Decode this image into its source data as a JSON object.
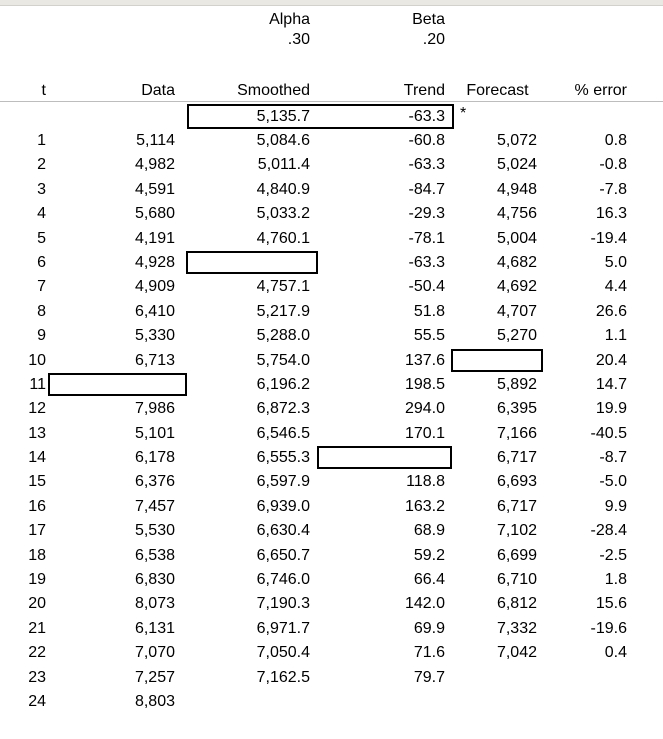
{
  "colors": {
    "background": "#ffffff",
    "text": "#000000",
    "box_border": "#000000",
    "header_rule": "#bdbdbd",
    "top_bar": "#e9e8e3"
  },
  "params": {
    "alpha": {
      "label": "Alpha",
      "value": ".30"
    },
    "beta": {
      "label": "Beta",
      "value": ".20"
    }
  },
  "table": {
    "headers": [
      "t",
      "Data",
      "Smoothed",
      "Trend",
      "Forecast",
      "% error"
    ],
    "initial_row": {
      "smoothed": "5,135.7",
      "trend": "-63.3",
      "note": "*"
    },
    "rows": [
      {
        "t": "1",
        "data": "5,114",
        "smoothed": "5,084.6",
        "trend": "-60.8",
        "forecast": "5,072",
        "err": "0.8"
      },
      {
        "t": "2",
        "data": "4,982",
        "smoothed": "5,011.4",
        "trend": "-63.3",
        "forecast": "5,024",
        "err": "-0.8"
      },
      {
        "t": "3",
        "data": "4,591",
        "smoothed": "4,840.9",
        "trend": "-84.7",
        "forecast": "4,948",
        "err": "-7.8"
      },
      {
        "t": "4",
        "data": "5,680",
        "smoothed": "5,033.2",
        "trend": "-29.3",
        "forecast": "4,756",
        "err": "16.3"
      },
      {
        "t": "5",
        "data": "4,191",
        "smoothed": "4,760.1",
        "trend": "-78.1",
        "forecast": "5,004",
        "err": "-19.4"
      },
      {
        "t": "6",
        "data": "4,928",
        "box": "smoothed",
        "trend": "-63.3",
        "forecast": "4,682",
        "err": "5.0"
      },
      {
        "t": "7",
        "data": "4,909",
        "smoothed": "4,757.1",
        "trend": "-50.4",
        "forecast": "4,692",
        "err": "4.4"
      },
      {
        "t": "8",
        "data": "6,410",
        "smoothed": "5,217.9",
        "trend": "51.8",
        "forecast": "4,707",
        "err": "26.6"
      },
      {
        "t": "9",
        "data": "5,330",
        "smoothed": "5,288.0",
        "trend": "55.5",
        "forecast": "5,270",
        "err": "1.1"
      },
      {
        "t": "10",
        "data": "6,713",
        "smoothed": "5,754.0",
        "trend": "137.6",
        "box": "forecast",
        "err": "20.4"
      },
      {
        "t": "11",
        "box": "data",
        "smoothed": "6,196.2",
        "trend": "198.5",
        "forecast": "5,892",
        "err": "14.7"
      },
      {
        "t": "12",
        "data": "7,986",
        "smoothed": "6,872.3",
        "trend": "294.0",
        "forecast": "6,395",
        "err": "19.9"
      },
      {
        "t": "13",
        "data": "5,101",
        "smoothed": "6,546.5",
        "trend": "170.1",
        "forecast": "7,166",
        "err": "-40.5"
      },
      {
        "t": "14",
        "data": "6,178",
        "smoothed": "6,555.3",
        "box": "trend",
        "forecast": "6,717",
        "err": "-8.7"
      },
      {
        "t": "15",
        "data": "6,376",
        "smoothed": "6,597.9",
        "trend": "118.8",
        "forecast": "6,693",
        "err": "-5.0"
      },
      {
        "t": "16",
        "data": "7,457",
        "smoothed": "6,939.0",
        "trend": "163.2",
        "forecast": "6,717",
        "err": "9.9"
      },
      {
        "t": "17",
        "data": "5,530",
        "smoothed": "6,630.4",
        "trend": "68.9",
        "forecast": "7,102",
        "err": "-28.4"
      },
      {
        "t": "18",
        "data": "6,538",
        "smoothed": "6,650.7",
        "trend": "59.2",
        "forecast": "6,699",
        "err": "-2.5"
      },
      {
        "t": "19",
        "data": "6,830",
        "smoothed": "6,746.0",
        "trend": "66.4",
        "forecast": "6,710",
        "err": "1.8"
      },
      {
        "t": "20",
        "data": "8,073",
        "smoothed": "7,190.3",
        "trend": "142.0",
        "forecast": "6,812",
        "err": "15.6"
      },
      {
        "t": "21",
        "data": "6,131",
        "smoothed": "6,971.7",
        "trend": "69.9",
        "forecast": "7,332",
        "err": "-19.6"
      },
      {
        "t": "22",
        "data": "7,070",
        "smoothed": "7,050.4",
        "trend": "71.6",
        "forecast": "7,042",
        "err": "0.4"
      },
      {
        "t": "23",
        "data": "7,257",
        "smoothed": "7,162.5",
        "trend": "79.7"
      },
      {
        "t": "24",
        "data": "8,803"
      }
    ]
  }
}
